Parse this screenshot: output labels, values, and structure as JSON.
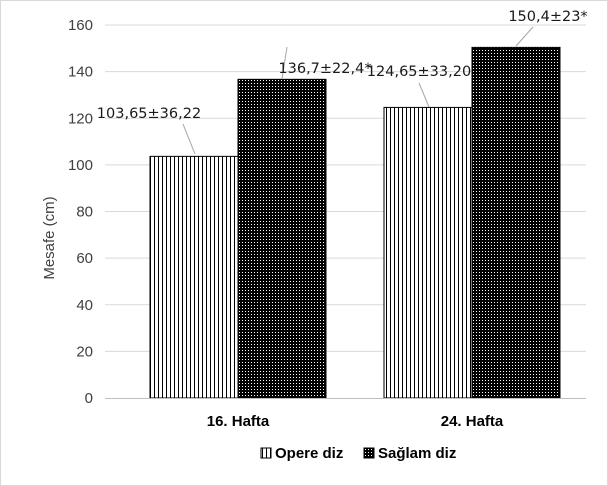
{
  "chart_data": {
    "type": "bar",
    "categories": [
      "16. Hafta",
      "24. Hafta"
    ],
    "series": [
      {
        "name": "Opere diz",
        "values": [
          103.65,
          124.65
        ],
        "labels": [
          "103,65±36,22",
          "124,65±33,20"
        ],
        "pattern": "vertical-stripes"
      },
      {
        "name": "Sağlam diz",
        "values": [
          136.7,
          150.4
        ],
        "labels": [
          "136,7±22,4*",
          "150,4±23*"
        ],
        "pattern": "dense-dots"
      }
    ],
    "title": "",
    "xlabel": "",
    "ylabel": "Mesafe (cm)",
    "ylim": [
      0,
      160
    ],
    "yticks": [
      "0",
      "20",
      "40",
      "60",
      "80",
      "100",
      "120",
      "140",
      "160"
    ],
    "grid": true,
    "legend": "bottom",
    "colors": {
      "grid": "#d9d9d9",
      "bar_outline": "#000000",
      "text": "#404040",
      "leader": "#a6a6a6"
    }
  }
}
